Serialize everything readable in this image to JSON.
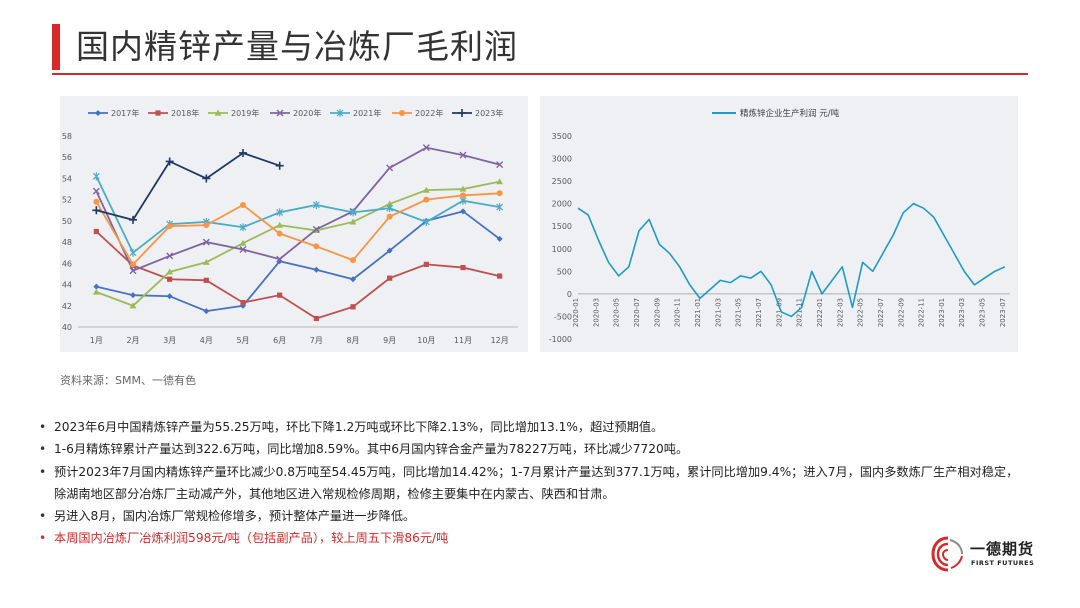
{
  "slide": {
    "title": "国内精锌产量与冶炼厂毛利润",
    "source": "资料来源：SMM、一德有色",
    "colors": {
      "accent": "#d7282a"
    }
  },
  "bullets": [
    {
      "text": "2023年6月中国精炼锌产量为55.25万吨，环比下降1.2万吨或环比下降2.13%，同比增加13.1%，超过预期值。"
    },
    {
      "text": "1-6月精炼锌累计产量达到322.6万吨，同比增加8.59%。其中6月国内锌合金产量为78227万吨，环比减少7720吨。"
    },
    {
      "text": "预计2023年7月国内精炼锌产量环比减少0.8万吨至54.45万吨，同比增加14.42%；1-7月累计产量达到377.1万吨，累计同比增加9.4%；进入7月，国内多数炼厂生产相对稳定，除湖南地区部分冶炼厂主动减产外，其他地区进入常规检修周期，检修主要集中在内蒙古、陕西和甘肃。"
    },
    {
      "text": "另进入8月，国内冶炼厂常规检修增多，预计整体产量进一步降低。"
    },
    {
      "text": "本周国内冶炼厂冶炼利润598元/吨（包括副产品），较上周五下滑86元/吨"
    }
  ],
  "logo": {
    "name": "一德期货",
    "sub": "FIRST FUTURES",
    "icon": "swirl-logo-icon"
  },
  "chart_data": [
    {
      "type": "line",
      "title": "",
      "xlabel": "",
      "ylabel": "",
      "categories": [
        "1月",
        "2月",
        "3月",
        "4月",
        "5月",
        "6月",
        "7月",
        "8月",
        "9月",
        "10月",
        "11月",
        "12月"
      ],
      "ylim": [
        40,
        58
      ],
      "yticks": [
        40,
        42,
        44,
        46,
        48,
        50,
        52,
        54,
        56,
        58
      ],
      "legend": "top",
      "grid": false,
      "series": [
        {
          "name": "2017年",
          "color": "#4472c4",
          "marker": "diamond",
          "values": [
            43.8,
            43.0,
            42.9,
            41.5,
            42.0,
            46.2,
            45.4,
            44.5,
            47.2,
            50.0,
            50.9,
            48.3
          ]
        },
        {
          "name": "2018年",
          "color": "#c0504d",
          "marker": "square",
          "values": [
            49.0,
            45.8,
            44.5,
            44.4,
            42.3,
            43.0,
            40.8,
            41.9,
            44.6,
            45.9,
            45.6,
            44.8
          ]
        },
        {
          "name": "2019年",
          "color": "#9bbb59",
          "marker": "triangle",
          "values": [
            43.3,
            42.0,
            45.2,
            46.1,
            47.9,
            49.6,
            49.1,
            49.9,
            51.6,
            52.9,
            53.0,
            53.7
          ]
        },
        {
          "name": "2020年",
          "color": "#8064a2",
          "marker": "x",
          "values": [
            52.8,
            45.3,
            46.7,
            48.0,
            47.3,
            46.4,
            49.2,
            50.9,
            55.0,
            56.9,
            56.2,
            55.3
          ]
        },
        {
          "name": "2021年",
          "color": "#4bacc6",
          "marker": "asterisk",
          "values": [
            54.2,
            47.0,
            49.7,
            49.9,
            49.4,
            50.8,
            51.5,
            50.8,
            51.2,
            49.9,
            51.9,
            51.3
          ]
        },
        {
          "name": "2022年",
          "color": "#f79646",
          "marker": "circle",
          "values": [
            51.8,
            45.9,
            49.5,
            49.6,
            51.5,
            48.8,
            47.6,
            46.3,
            50.4,
            52.0,
            52.4,
            52.6
          ]
        },
        {
          "name": "2023年",
          "color": "#1f3864",
          "marker": "plus",
          "values": [
            51.0,
            50.1,
            55.6,
            54.0,
            56.4,
            55.2,
            null,
            null,
            null,
            null,
            null,
            null
          ]
        }
      ]
    },
    {
      "type": "line",
      "title": "",
      "xlabel": "",
      "ylabel": "",
      "legend": "top",
      "grid": false,
      "ylim": [
        -1000,
        3500
      ],
      "yticks": [
        -1000,
        -500,
        0,
        500,
        1000,
        1500,
        2000,
        2500,
        3000,
        3500
      ],
      "xticks": [
        "2020-01",
        "2020-03",
        "2020-05",
        "2020-07",
        "2020-09",
        "2020-11",
        "2021-01",
        "2021-03",
        "2021-05",
        "2021-07",
        "2021-09",
        "2021-11",
        "2022-01",
        "2022-03",
        "2022-05",
        "2022-07",
        "2022-09",
        "2022-11",
        "2023-01",
        "2023-03",
        "2023-05",
        "2023-07"
      ],
      "series": [
        {
          "name": "精炼锌企业生产利润 元/吨",
          "color": "#1f9ac9",
          "x": [
            "2020-01",
            "2020-02",
            "2020-03",
            "2020-04",
            "2020-05",
            "2020-06",
            "2020-07",
            "2020-08",
            "2020-09",
            "2020-10",
            "2020-11",
            "2020-12",
            "2021-01",
            "2021-02",
            "2021-03",
            "2021-04",
            "2021-05",
            "2021-06",
            "2021-07",
            "2021-08",
            "2021-09",
            "2021-10",
            "2021-11",
            "2021-12",
            "2022-01",
            "2022-02",
            "2022-03",
            "2022-04",
            "2022-05",
            "2022-06",
            "2022-07",
            "2022-08",
            "2022-09",
            "2022-10",
            "2022-11",
            "2022-12",
            "2023-01",
            "2023-02",
            "2023-03",
            "2023-04",
            "2023-05",
            "2023-06",
            "2023-07"
          ],
          "values": [
            1900,
            1750,
            1200,
            700,
            400,
            600,
            1400,
            1650,
            1100,
            900,
            600,
            200,
            -100,
            100,
            300,
            250,
            400,
            350,
            500,
            200,
            -400,
            -500,
            -300,
            500,
            0,
            300,
            600,
            -300,
            700,
            500,
            900,
            1300,
            1800,
            2000,
            1900,
            1700,
            1300,
            900,
            500,
            200,
            350,
            500,
            600
          ]
        }
      ]
    }
  ]
}
